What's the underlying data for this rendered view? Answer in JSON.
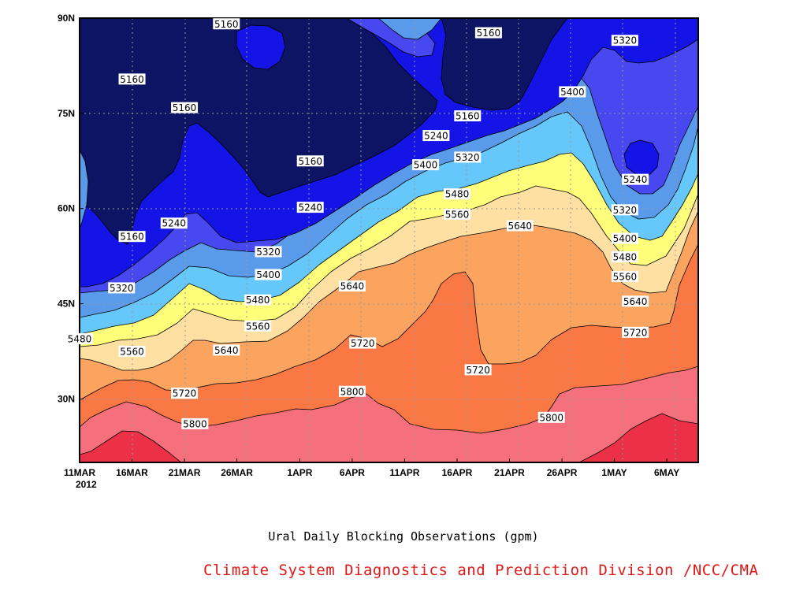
{
  "chart_data": {
    "type": "filled-contour",
    "title": "Ural Daily Blocking Observations (gpm)",
    "credit": "Climate System Diagnostics and Prediction Division /NCC/CMA",
    "x_axis": {
      "range": [
        "2012-03-11",
        "2012-05-09"
      ],
      "ticks": [
        "11MAR",
        "16MAR",
        "21MAR",
        "26MAR",
        "1APR",
        "6APR",
        "11APR",
        "16APR",
        "21APR",
        "26APR",
        "1MAY",
        "6MAY"
      ],
      "year_label": "2012"
    },
    "y_axis": {
      "range": [
        20,
        90
      ],
      "ticks": [
        "30N",
        "45N",
        "60N",
        "75N",
        "90N"
      ],
      "unit": "degrees latitude"
    },
    "grid": "dotted",
    "contour_levels": [
      5160,
      5240,
      5320,
      5400,
      5480,
      5560,
      5640,
      5720,
      5800,
      5880
    ],
    "fill_colors": [
      "#0c1463",
      "#1414e6",
      "#4848f0",
      "#5a9aea",
      "#66c8fa",
      "#fefe7a",
      "#fde0a2",
      "#faa460",
      "#fa7844",
      "#f5707c",
      "#ec3046"
    ],
    "contour_labels": [
      {
        "text": "5160",
        "date": "2012-03-25",
        "lat": 89.1
      },
      {
        "text": "5160",
        "date": "2012-04-19",
        "lat": 87.7
      },
      {
        "text": "5160",
        "date": "2012-03-16",
        "lat": 80.4
      },
      {
        "text": "5160",
        "date": "2012-03-21",
        "lat": 75.9
      },
      {
        "text": "5160",
        "date": "2012-04-17",
        "lat": 74.6
      },
      {
        "text": "5160",
        "date": "2012-04-02",
        "lat": 67.5
      },
      {
        "text": "5160",
        "date": "2012-03-16",
        "lat": 55.6
      },
      {
        "text": "5240",
        "date": "2012-04-14",
        "lat": 71.5
      },
      {
        "text": "5240",
        "date": "2012-05-03",
        "lat": 64.6
      },
      {
        "text": "5240",
        "date": "2012-04-02",
        "lat": 60.2
      },
      {
        "text": "5240",
        "date": "2012-03-20",
        "lat": 57.7
      },
      {
        "text": "5320",
        "date": "2012-05-02",
        "lat": 86.5
      },
      {
        "text": "5320",
        "date": "2012-04-17",
        "lat": 68.1
      },
      {
        "text": "5320",
        "date": "2012-05-02",
        "lat": 59.8
      },
      {
        "text": "5320",
        "date": "2012-03-29",
        "lat": 53.2
      },
      {
        "text": "5320",
        "date": "2012-03-15",
        "lat": 47.5
      },
      {
        "text": "5400",
        "date": "2012-04-27",
        "lat": 78.4
      },
      {
        "text": "5400",
        "date": "2012-04-13",
        "lat": 66.9
      },
      {
        "text": "5400",
        "date": "2012-05-02",
        "lat": 55.3
      },
      {
        "text": "5400",
        "date": "2012-03-29",
        "lat": 49.6
      },
      {
        "text": "5480",
        "date": "2012-04-16",
        "lat": 62.3
      },
      {
        "text": "5480",
        "date": "2012-05-02",
        "lat": 52.4
      },
      {
        "text": "5480",
        "date": "2012-03-28",
        "lat": 45.6
      },
      {
        "text": "5480",
        "date": "2012-03-11",
        "lat": 39.5
      },
      {
        "text": "5560",
        "date": "2012-04-16",
        "lat": 59.1
      },
      {
        "text": "5560",
        "date": "2012-05-02",
        "lat": 49.3
      },
      {
        "text": "5560",
        "date": "2012-03-28",
        "lat": 41.5
      },
      {
        "text": "5560",
        "date": "2012-03-16",
        "lat": 37.5
      },
      {
        "text": "5640",
        "date": "2012-04-22",
        "lat": 57.3
      },
      {
        "text": "5640",
        "date": "2012-04-06",
        "lat": 47.8
      },
      {
        "text": "5640",
        "date": "2012-05-03",
        "lat": 45.4
      },
      {
        "text": "5640",
        "date": "2012-03-25",
        "lat": 37.7
      },
      {
        "text": "5720",
        "date": "2012-04-07",
        "lat": 38.8
      },
      {
        "text": "5720",
        "date": "2012-05-03",
        "lat": 40.5
      },
      {
        "text": "5720",
        "date": "2012-04-18",
        "lat": 34.6
      },
      {
        "text": "5720",
        "date": "2012-03-21",
        "lat": 30.9
      },
      {
        "text": "5800",
        "date": "2012-04-06",
        "lat": 31.2
      },
      {
        "text": "5800",
        "date": "2012-04-25",
        "lat": 27.1
      },
      {
        "text": "5800",
        "date": "2012-03-22",
        "lat": 26.1
      }
    ]
  }
}
